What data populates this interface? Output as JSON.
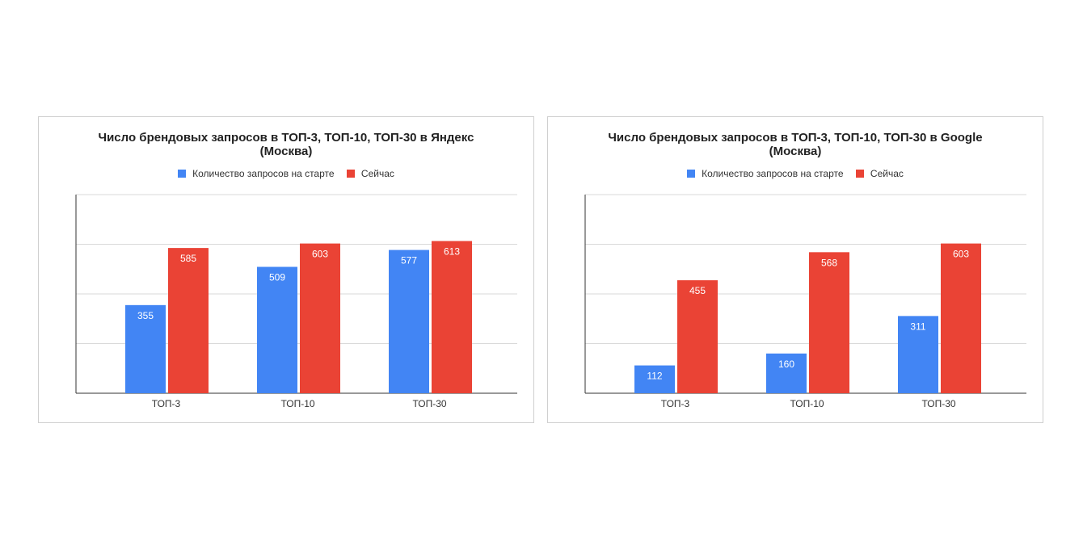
{
  "colors": {
    "start": "#4285F4",
    "now": "#EA4335",
    "grid": "#d9d9d9",
    "axis": "#333333"
  },
  "chart_data": [
    {
      "type": "bar",
      "title": "Число брендовых запросов в ТОП-3, ТОП-10, ТОП-30 в Яндекс",
      "title_line2": "(Москва)",
      "categories": [
        "ТОП-3",
        "ТОП-10",
        "ТОП-30"
      ],
      "series": [
        {
          "name": "Количество запросов на старте",
          "values": [
            355,
            509,
            577
          ]
        },
        {
          "name": "Сейчас",
          "values": [
            585,
            603,
            613
          ]
        }
      ],
      "ylim": [
        0,
        800
      ],
      "grid": true,
      "legend": "top"
    },
    {
      "type": "bar",
      "title": "Число брендовых запросов в ТОП-3, ТОП-10, ТОП-30 в Google",
      "title_line2": "(Москва)",
      "categories": [
        "ТОП-3",
        "ТОП-10",
        "ТОП-30"
      ],
      "series": [
        {
          "name": "Количество запросов на старте",
          "values": [
            112,
            160,
            311
          ]
        },
        {
          "name": "Сейчас",
          "values": [
            455,
            568,
            603
          ]
        }
      ],
      "ylim": [
        0,
        800
      ],
      "grid": true,
      "legend": "top"
    }
  ]
}
